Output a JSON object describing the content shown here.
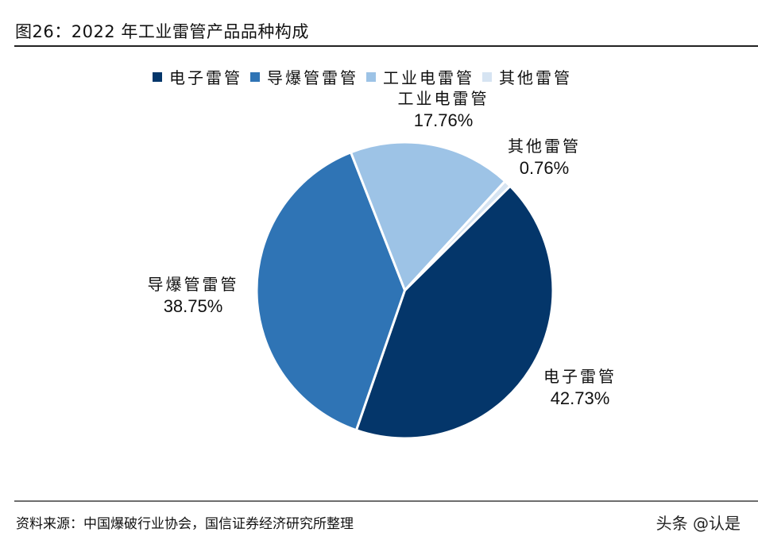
{
  "title": "图26：2022 年工业雷管产品品种构成",
  "legend": [
    {
      "label": "电子雷管",
      "color": "#04366A"
    },
    {
      "label": "导爆管雷管",
      "color": "#2F74B5"
    },
    {
      "label": "工业电雷管",
      "color": "#9DC3E6"
    },
    {
      "label": "其他雷管",
      "color": "#D6E4F2"
    }
  ],
  "labels": {
    "dianzi": {
      "name": "电子雷管",
      "pct": "42.73%"
    },
    "daobao": {
      "name": "导爆管雷管",
      "pct": "38.75%"
    },
    "gongye": {
      "name": "工业电雷管",
      "pct": "17.76%"
    },
    "qita": {
      "name": "其他雷管",
      "pct": "0.76%"
    }
  },
  "footer": {
    "source": "资料来源：中国爆破行业协会，国信证券经济研究所整理",
    "watermark": "头条 @认是"
  },
  "chart_data": {
    "type": "pie",
    "title": "图26：2022 年工业雷管产品品种构成",
    "categories": [
      "电子雷管",
      "导爆管雷管",
      "工业电雷管",
      "其他雷管"
    ],
    "values": [
      42.73,
      38.75,
      17.76,
      0.76
    ],
    "unit": "%",
    "colors": [
      "#04366A",
      "#2F74B5",
      "#9DC3E6",
      "#D6E4F2"
    ],
    "start_angle_deg_clockwise_from_top": 45.3,
    "legend_position": "top",
    "data_labels": true
  }
}
